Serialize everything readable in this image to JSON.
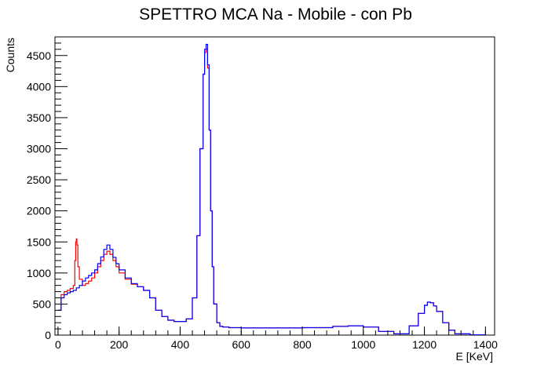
{
  "chart_data": {
    "type": "line",
    "title": "SPETTRO MCA Na - Mobile - con Pb",
    "xlabel": "E [KeV]",
    "ylabel": "Counts",
    "xlim": [
      -10,
      1430
    ],
    "ylim": [
      0,
      4800
    ],
    "xticks": [
      0,
      200,
      400,
      600,
      800,
      1000,
      1200,
      1400
    ],
    "yticks": [
      0,
      500,
      1000,
      1500,
      2000,
      2500,
      3000,
      3500,
      4000,
      4500
    ],
    "grid": false,
    "legend": "none",
    "series": [
      {
        "color": "#ff0000",
        "x": [
          0,
          10,
          20,
          30,
          40,
          50,
          55,
          58,
          60,
          62,
          65,
          70,
          80,
          90,
          100,
          110,
          120,
          130,
          140,
          150,
          160,
          170,
          180,
          190,
          200,
          220,
          240,
          260,
          280,
          300,
          320,
          340,
          360,
          380,
          400,
          420,
          440,
          455,
          465,
          475,
          480,
          485,
          490,
          495,
          500,
          505,
          510,
          520,
          530,
          540,
          560,
          600,
          700,
          800,
          900,
          950,
          1000,
          1050,
          1100,
          1150,
          1180,
          1200,
          1210,
          1220,
          1230,
          1240,
          1260,
          1280,
          1300,
          1350,
          1400
        ],
        "y": [
          400,
          650,
          700,
          720,
          750,
          800,
          1200,
          1500,
          1550,
          1450,
          1100,
          900,
          800,
          830,
          870,
          920,
          1000,
          1100,
          1200,
          1300,
          1350,
          1300,
          1200,
          1100,
          1000,
          900,
          820,
          780,
          720,
          600,
          400,
          300,
          240,
          220,
          220,
          260,
          600,
          1600,
          3000,
          4200,
          4550,
          4600,
          4300,
          3300,
          2000,
          1100,
          500,
          200,
          140,
          130,
          120,
          115,
          115,
          120,
          140,
          150,
          130,
          60,
          20,
          150,
          350,
          480,
          530,
          520,
          470,
          380,
          200,
          80,
          20,
          5,
          0
        ]
      },
      {
        "color": "#0000ff",
        "x": [
          0,
          10,
          20,
          30,
          40,
          50,
          60,
          70,
          80,
          90,
          100,
          110,
          120,
          130,
          140,
          150,
          160,
          170,
          180,
          190,
          200,
          220,
          240,
          260,
          280,
          300,
          320,
          340,
          360,
          380,
          400,
          420,
          440,
          455,
          465,
          475,
          480,
          485,
          490,
          495,
          500,
          505,
          510,
          520,
          530,
          540,
          560,
          600,
          700,
          800,
          900,
          950,
          1000,
          1050,
          1100,
          1150,
          1180,
          1200,
          1210,
          1220,
          1230,
          1240,
          1260,
          1280,
          1300,
          1350,
          1400
        ],
        "y": [
          400,
          600,
          650,
          680,
          700,
          720,
          760,
          800,
          870,
          920,
          960,
          1000,
          1050,
          1150,
          1260,
          1380,
          1450,
          1380,
          1250,
          1150,
          1050,
          920,
          830,
          780,
          720,
          600,
          400,
          300,
          240,
          220,
          220,
          260,
          600,
          1600,
          3000,
          4200,
          4600,
          4680,
          4350,
          3300,
          2000,
          1100,
          500,
          200,
          140,
          130,
          120,
          115,
          115,
          120,
          140,
          150,
          130,
          60,
          20,
          150,
          350,
          480,
          530,
          520,
          470,
          380,
          200,
          80,
          20,
          5,
          0
        ]
      }
    ]
  }
}
